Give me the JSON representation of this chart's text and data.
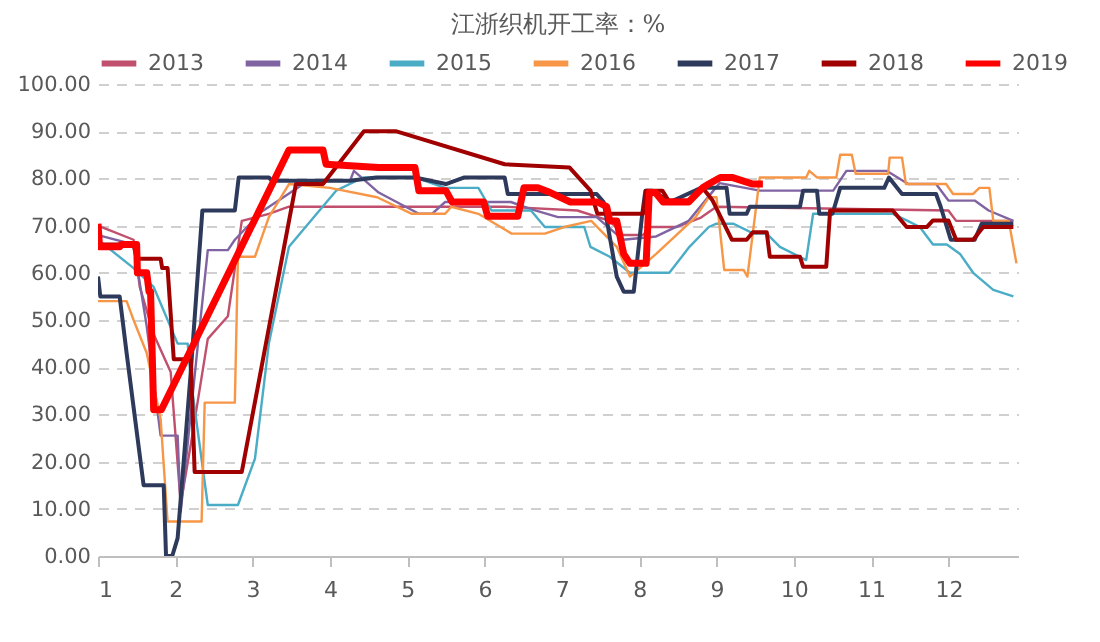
{
  "chart_data": {
    "type": "line",
    "title": "江浙织机开工率：%",
    "xlim": [
      1,
      12.9
    ],
    "xticks": [
      1,
      2,
      3,
      4,
      5,
      6,
      7,
      8,
      9,
      10,
      11,
      12
    ],
    "ylim": [
      0,
      100
    ],
    "yticks": [
      {
        "value": 0,
        "label": "0.00"
      },
      {
        "value": 10,
        "label": "10.00"
      },
      {
        "value": 20,
        "label": "20.00"
      },
      {
        "value": 30,
        "label": "30.00"
      },
      {
        "value": 40,
        "label": "40.00"
      },
      {
        "value": 50,
        "label": "50.00"
      },
      {
        "value": 60,
        "label": "60.00"
      },
      {
        "value": 70,
        "label": "70.00"
      },
      {
        "value": 80,
        "label": "80.00"
      },
      {
        "value": 90,
        "label": "90.00"
      },
      {
        "value": 100,
        "label": "100.00"
      }
    ],
    "grid": "y",
    "legend": "top",
    "series": [
      {
        "name": "2013",
        "color": "#c0506d",
        "x": [
          1.0,
          1.46,
          1.54,
          1.72,
          1.94,
          2.07,
          2.2,
          2.42,
          2.68,
          2.86,
          3.21,
          3.47,
          4.96,
          6.26,
          7.2,
          7.62,
          7.79,
          8.05,
          8.14,
          8.48,
          8.8,
          9.0,
          12.0,
          12.1,
          12.84
        ],
        "values": [
          70,
          67,
          57,
          47,
          39,
          11,
          23.6,
          46,
          50.8,
          71,
          72.5,
          74,
          74,
          74,
          73.2,
          71,
          68,
          68,
          69.7,
          69.7,
          71.7,
          74,
          73.2,
          71,
          71
        ]
      },
      {
        "name": "2014",
        "color": "#8064a2",
        "x": [
          1.0,
          1.46,
          1.63,
          1.81,
          2.03,
          2.07,
          2.29,
          2.42,
          2.68,
          2.77,
          3.12,
          3.72,
          4.26,
          4.31,
          4.63,
          5.15,
          5.32,
          5.49,
          6.34,
          6.6,
          6.95,
          7.45,
          7.79,
          8.22,
          8.64,
          9.04,
          9.56,
          10.51,
          10.68,
          11.2,
          11.48,
          11.84,
          12.0,
          12.34,
          12.52,
          12.84
        ],
        "values": [
          68,
          66,
          48.7,
          25.5,
          25.5,
          9.4,
          44.5,
          64.8,
          64.8,
          67,
          73,
          79.5,
          79.5,
          81.6,
          77,
          72.5,
          72.5,
          75,
          75,
          73.5,
          71.8,
          71.8,
          67,
          67.7,
          71,
          79,
          77.4,
          77.4,
          81.6,
          81.6,
          78.8,
          78.8,
          75.3,
          75.3,
          73.2,
          71
        ]
      },
      {
        "name": "2015",
        "color": "#4bacc6",
        "x": [
          1.0,
          1.46,
          1.72,
          2.03,
          2.16,
          2.2,
          2.42,
          2.81,
          3.03,
          3.21,
          3.47,
          3.72,
          4.08,
          4.43,
          5.1,
          5.49,
          5.92,
          6.09,
          6.6,
          6.78,
          7.29,
          7.37,
          7.62,
          7.88,
          8.39,
          8.65,
          8.9,
          9.0,
          9.22,
          9.48,
          9.65,
          9.82,
          10.16,
          10.25,
          11.28,
          11.46,
          11.63,
          11.8,
          11.98,
          12.15,
          12.32,
          12.58,
          12.84
        ],
        "values": [
          67,
          61,
          57,
          45,
          45,
          37.4,
          10.8,
          10.8,
          20.6,
          45,
          65.5,
          70.4,
          77.4,
          80.2,
          80.2,
          78,
          78,
          73.2,
          73.2,
          69.7,
          69.7,
          65.5,
          63.4,
          60,
          60,
          65.5,
          69.7,
          70.4,
          70.4,
          68.3,
          68.3,
          65.5,
          62.7,
          72.5,
          72.5,
          71.1,
          69.7,
          66,
          66,
          64,
          60,
          56.4,
          55
        ]
      },
      {
        "name": "2016",
        "color": "#f79646",
        "x": [
          1.0,
          1.37,
          1.46,
          1.63,
          1.81,
          1.9,
          2.34,
          2.38,
          2.77,
          2.81,
          3.03,
          3.21,
          3.47,
          4.0,
          4.61,
          5.06,
          5.49,
          5.57,
          5.92,
          6.35,
          6.78,
          7.03,
          7.38,
          7.71,
          7.88,
          8.22,
          8.73,
          8.9,
          9.0,
          9.1,
          9.35,
          9.4,
          9.56,
          10.16,
          10.2,
          10.3,
          10.55,
          10.6,
          10.75,
          10.8,
          11.22,
          11.24,
          11.4,
          11.45,
          11.97,
          12.06,
          12.32,
          12.4,
          12.53,
          12.58,
          12.78,
          12.88
        ],
        "values": [
          54,
          54,
          50,
          43,
          29,
          7.3,
          7.3,
          32.5,
          32.5,
          63.4,
          63.4,
          71.8,
          78.8,
          78,
          76,
          72.5,
          72.5,
          74,
          72.5,
          68.3,
          68.3,
          69.7,
          71,
          65.5,
          59.2,
          64,
          71.8,
          76,
          76,
          60.6,
          60.6,
          59.2,
          80.2,
          80.2,
          81.6,
          80.2,
          80.2,
          85,
          85,
          81,
          81,
          84.4,
          84.4,
          78.8,
          78.8,
          76.7,
          76.7,
          78,
          78,
          71,
          71,
          62
        ]
      },
      {
        "name": "2017",
        "color": "#2e3a5c",
        "x": [
          1.0,
          1.03,
          1.28,
          1.37,
          1.59,
          1.85,
          1.88,
          1.96,
          2.03,
          2.2,
          2.35,
          2.77,
          2.82,
          3.21,
          3.25,
          4.26,
          4.6,
          5.1,
          5.5,
          5.74,
          6.26,
          6.3,
          7.45,
          7.54,
          7.71,
          7.8,
          7.93,
          8.04,
          8.08,
          8.17,
          8.4,
          8.8,
          9.13,
          9.17,
          9.39,
          9.43,
          10.08,
          10.12,
          10.3,
          10.33,
          10.5,
          10.6,
          11.17,
          11.23,
          11.4,
          11.84,
          11.9,
          12.03,
          12.34,
          12.43,
          12.84
        ],
        "values": [
          59.2,
          55,
          55,
          43,
          15,
          15,
          0,
          0,
          3.8,
          39,
          73.2,
          73.2,
          80.2,
          80.2,
          79.5,
          79.5,
          80.2,
          80.2,
          78.8,
          80.2,
          80.2,
          76.7,
          76.7,
          75,
          59.2,
          56,
          56,
          72.5,
          77.4,
          77.4,
          75,
          78,
          78,
          72.5,
          72.5,
          74,
          74,
          77.4,
          77.4,
          72.5,
          72.5,
          78,
          78,
          80.2,
          76.7,
          76.7,
          74,
          67,
          67,
          70.4,
          70.4
        ]
      },
      {
        "name": "2018",
        "color": "#a00000",
        "x": [
          1.0,
          1.03,
          1.46,
          1.5,
          1.81,
          1.83,
          1.9,
          1.98,
          2.2,
          2.25,
          2.86,
          3.56,
          3.91,
          4.44,
          4.85,
          6.26,
          7.1,
          7.37,
          7.46,
          8.05,
          8.09,
          8.3,
          8.38,
          8.65,
          8.82,
          8.95,
          9.2,
          9.39,
          9.47,
          9.65,
          9.69,
          10.08,
          10.12,
          10.42,
          10.47,
          11.28,
          11.46,
          11.72,
          11.8,
          12.0,
          12.1,
          12.32,
          12.45,
          12.84
        ],
        "values": [
          68.3,
          66,
          66,
          63,
          63,
          61,
          61,
          41.7,
          41.7,
          17.8,
          17.8,
          78.8,
          78.8,
          90,
          90,
          83,
          82.3,
          77.4,
          72.5,
          72.5,
          77.4,
          77.4,
          75.3,
          75.3,
          78,
          75.3,
          67,
          67,
          68.6,
          68.6,
          63.4,
          63.4,
          61.3,
          61.3,
          73.2,
          73.2,
          69.7,
          69.7,
          71.1,
          71.1,
          67,
          67,
          69.7,
          69.7
        ]
      },
      {
        "name": "2019",
        "color": "#ff0000",
        "x": [
          1.0,
          1.02,
          1.28,
          1.3,
          1.5,
          1.51,
          1.63,
          1.66,
          1.68,
          1.72,
          1.82,
          3.47,
          3.91,
          3.95,
          4.63,
          5.1,
          5.15,
          5.5,
          5.58,
          5.99,
          6.04,
          6.43,
          6.51,
          6.69,
          6.85,
          7.11,
          7.46,
          7.58,
          7.62,
          7.71,
          7.8,
          7.88,
          8.09,
          8.13,
          8.21,
          8.31,
          8.64,
          8.82,
          8.9,
          9.05,
          9.2,
          9.47,
          9.6
        ],
        "values": [
          70.4,
          65.5,
          65.5,
          66,
          66,
          60,
          60,
          56,
          56,
          31,
          31,
          86,
          86,
          83,
          82.3,
          82.3,
          77.4,
          77.4,
          75,
          75,
          72,
          72,
          78,
          78,
          77,
          75,
          75,
          74,
          71,
          71,
          64,
          62,
          62,
          77,
          77,
          75,
          75,
          78,
          78.8,
          80.2,
          80.2,
          78.8,
          78.8
        ]
      }
    ]
  }
}
